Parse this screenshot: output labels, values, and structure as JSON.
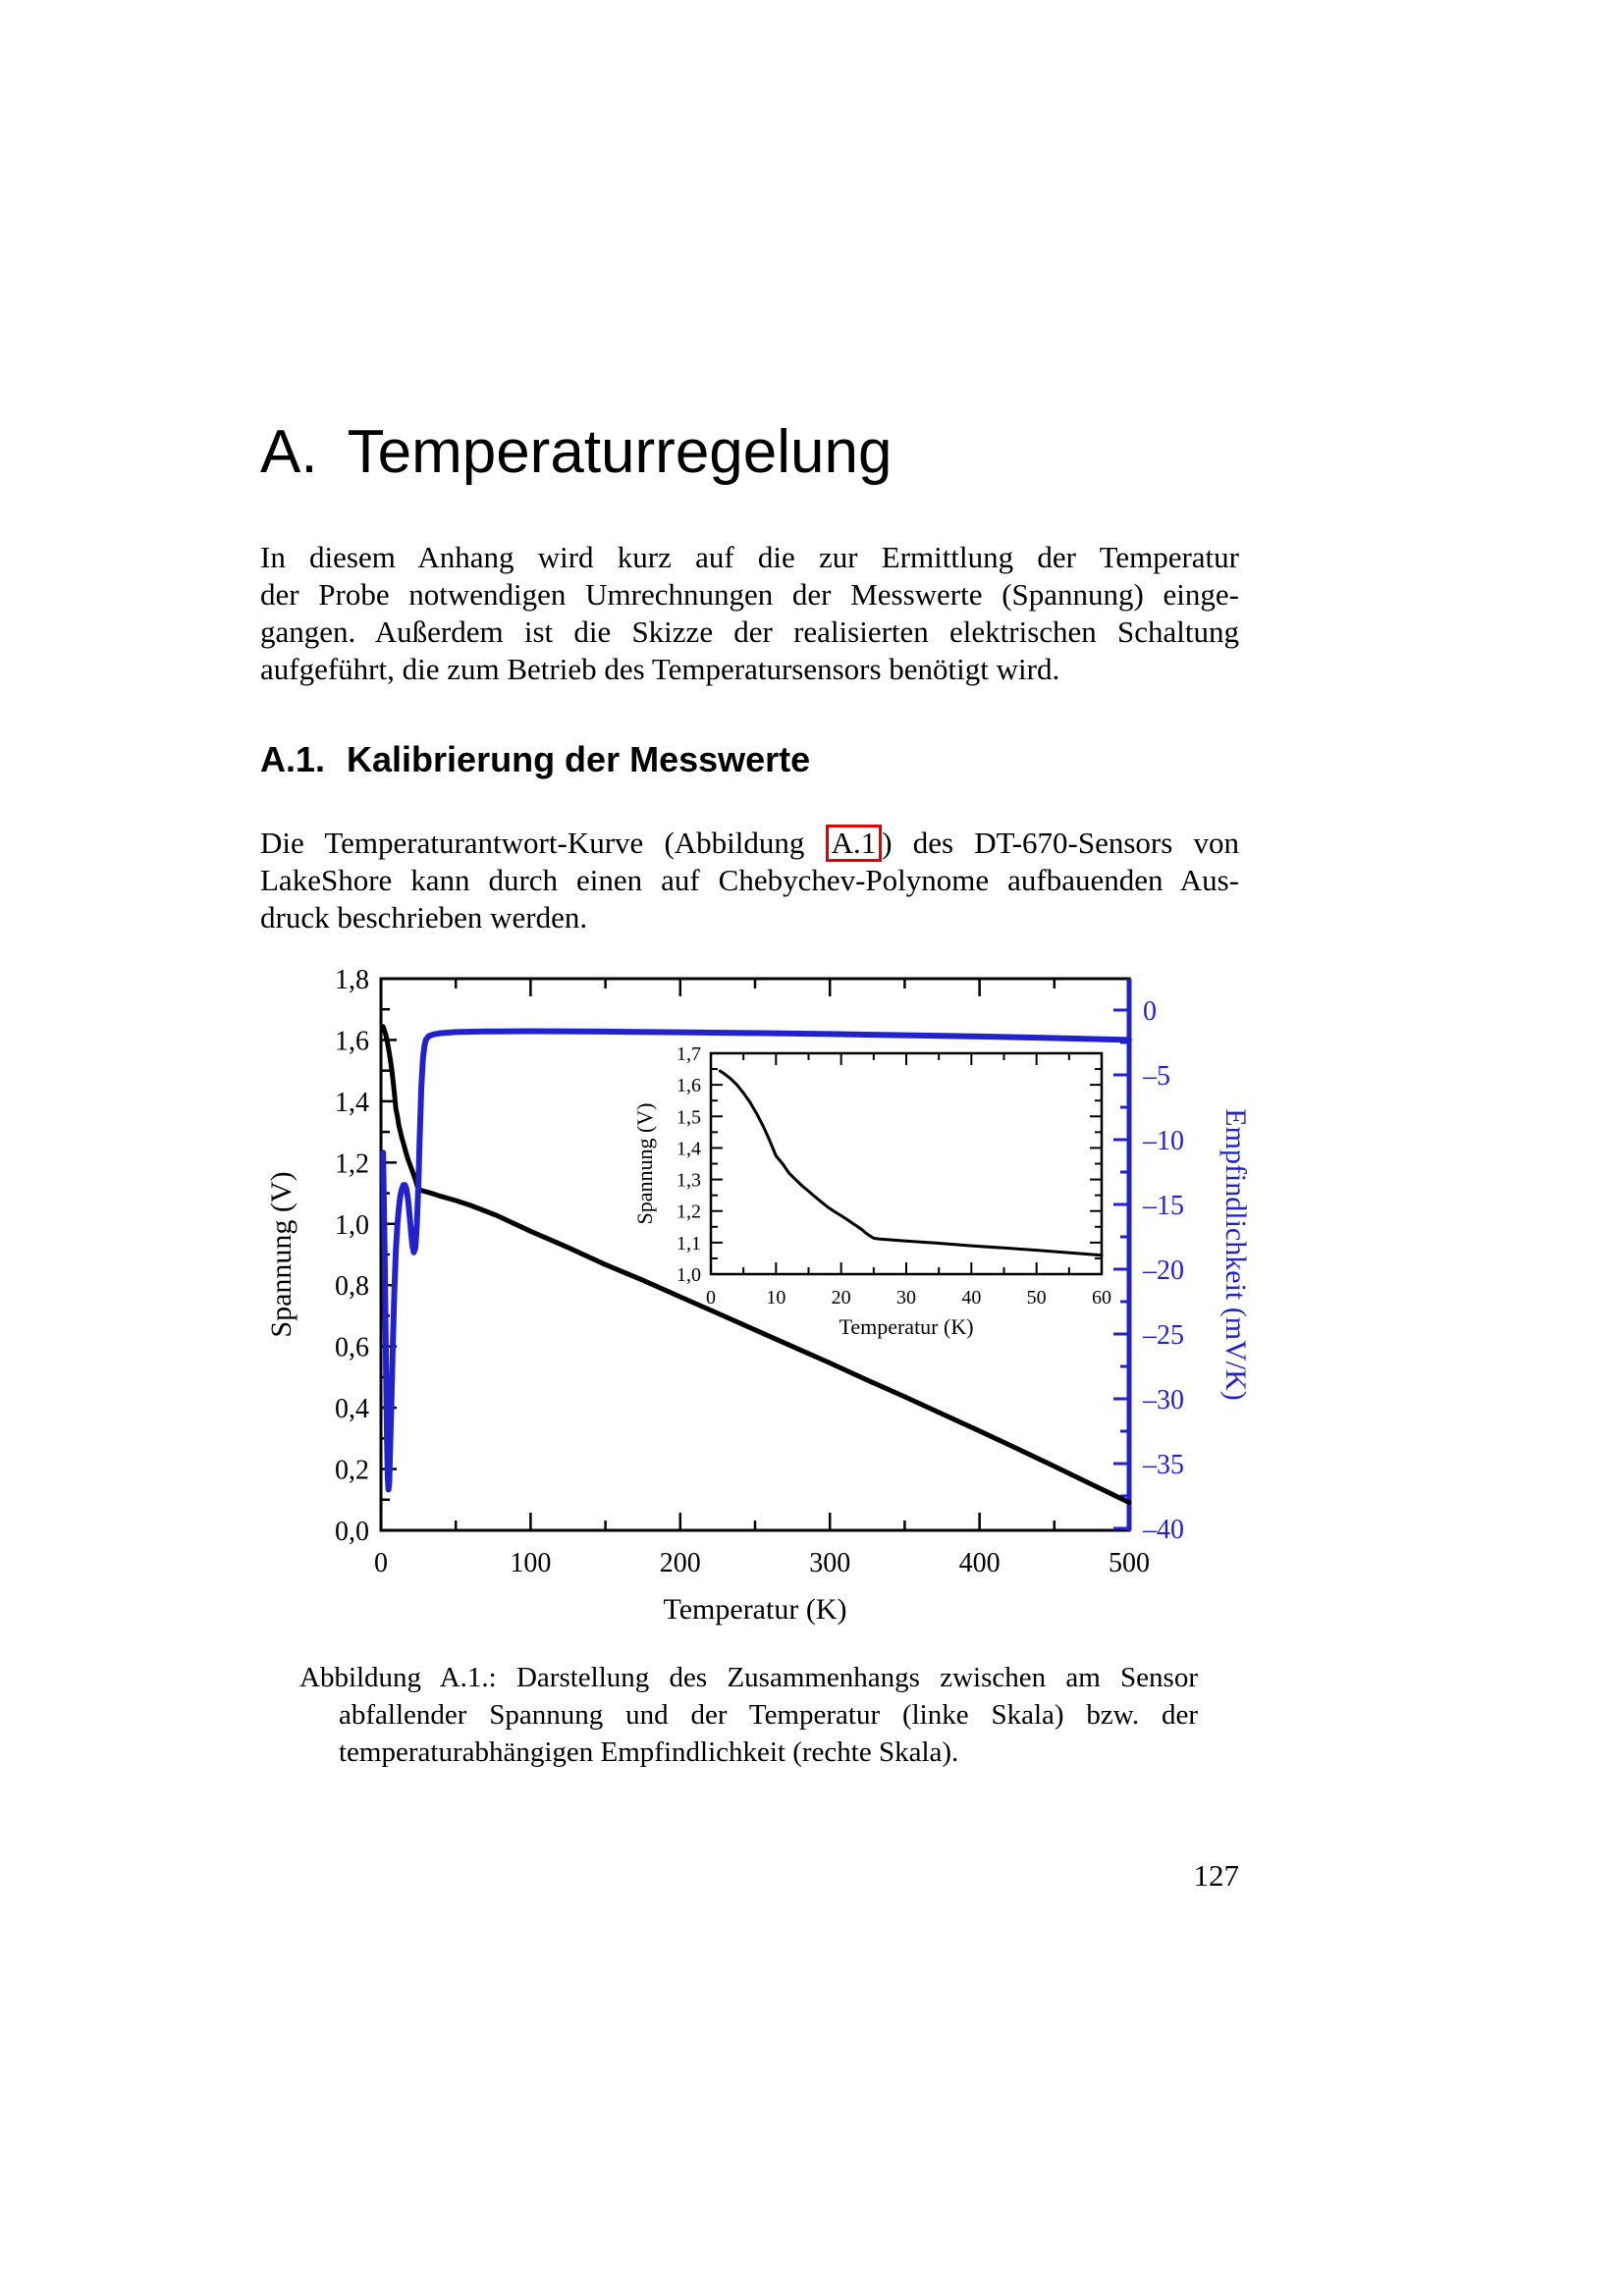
{
  "page": {
    "number": "127"
  },
  "chapter": {
    "label": "A.",
    "title": "Temperaturregelung"
  },
  "intro": {
    "lines": [
      "In diesem Anhang wird kurz auf die zur Ermittlung der Temperatur",
      "der Probe notwendigen Umrechnungen der Messwerte (Spannung) einge-",
      "gangen. Außerdem ist die Skizze der realisierten elektrischen Schaltung",
      "aufgeführt, die zum Betrieb des Temperatursensors benötigt wird."
    ]
  },
  "section": {
    "label": "A.1.",
    "title": "Kalibrierung der Messwerte"
  },
  "body": {
    "line1_before": "Die Temperaturantwort-Kurve (Abbildung",
    "line1_ref": "A.1",
    "line1_after": ") des DT-670-Sensors von",
    "line2": "LakeShore kann durch einen auf Chebychev-Polynome aufbauenden Aus-",
    "line3": "druck beschrieben werden."
  },
  "caption": {
    "lines": [
      "Abbildung A.1.: Darstellung des Zusammenhangs zwischen am Sensor",
      "abfallender Spannung und der Temperatur (linke Skala) bzw. der",
      "temperaturabhängigen Empfindlichkeit (rechte Skala)."
    ]
  },
  "colors": {
    "accent_blue": "#2222cc",
    "ref_red": "#e00000",
    "curve_black": "#000000"
  },
  "chart_data": {
    "type": "line",
    "main": {
      "x_axis": {
        "label": "Temperatur (K)",
        "min": 0,
        "max": 500,
        "major": 100,
        "minor": 50,
        "tick_labels": [
          "0",
          "100",
          "200",
          "300",
          "400",
          "500"
        ]
      },
      "left_axis": {
        "label": "Spannung (V)",
        "min": 0,
        "max": 1.8,
        "major": 0.2,
        "minor": 0.1,
        "tick_labels": [
          "0,0",
          "0,2",
          "0,4",
          "0,6",
          "0,8",
          "1,0",
          "1,2",
          "1,4",
          "1,6",
          "1,8"
        ]
      },
      "right_axis": {
        "label": "Empfindlichkeit (mV/K)",
        "min": -40,
        "max": 0,
        "major": 5,
        "minor": 2.5,
        "color": "#2222cc",
        "tick_labels": [
          "0",
          "–5",
          "–10",
          "–15",
          "–20",
          "–25",
          "–30",
          "–35",
          "–40"
        ]
      },
      "series": [
        {
          "name": "Spannung",
          "axis": "left",
          "color": "#000000",
          "width": 5,
          "points": [
            [
              1.4,
              1.644
            ],
            [
              2,
              1.636
            ],
            [
              3,
              1.62
            ],
            [
              4,
              1.6
            ],
            [
              5,
              1.574
            ],
            [
              6,
              1.545
            ],
            [
              7,
              1.51
            ],
            [
              8,
              1.47
            ],
            [
              9,
              1.425
            ],
            [
              10,
              1.375
            ],
            [
              11,
              1.35
            ],
            [
              12,
              1.32
            ],
            [
              13,
              1.3
            ],
            [
              14,
              1.28
            ],
            [
              15,
              1.263
            ],
            [
              16,
              1.245
            ],
            [
              17,
              1.228
            ],
            [
              18,
              1.212
            ],
            [
              19,
              1.198
            ],
            [
              20,
              1.185
            ],
            [
              21,
              1.172
            ],
            [
              22,
              1.158
            ],
            [
              23,
              1.144
            ],
            [
              24,
              1.127
            ],
            [
              25,
              1.114
            ],
            [
              26,
              1.111
            ],
            [
              28,
              1.108
            ],
            [
              30,
              1.105
            ],
            [
              35,
              1.098
            ],
            [
              40,
              1.09
            ],
            [
              45,
              1.083
            ],
            [
              50,
              1.076
            ],
            [
              60,
              1.06
            ],
            [
              77,
              1.028
            ],
            [
              100,
              0.976
            ],
            [
              125,
              0.923
            ],
            [
              150,
              0.867
            ],
            [
              175,
              0.816
            ],
            [
              200,
              0.762
            ],
            [
              225,
              0.708
            ],
            [
              250,
              0.654
            ],
            [
              275,
              0.6
            ],
            [
              300,
              0.546
            ],
            [
              325,
              0.49
            ],
            [
              350,
              0.436
            ],
            [
              375,
              0.38
            ],
            [
              400,
              0.324
            ],
            [
              425,
              0.267
            ],
            [
              450,
              0.209
            ],
            [
              475,
              0.15
            ],
            [
              500,
              0.091
            ]
          ]
        },
        {
          "name": "Empfindlichkeit",
          "axis": "right",
          "color": "#2222cc",
          "width": 6,
          "points": [
            [
              1.4,
              -11
            ],
            [
              2,
              -15
            ],
            [
              2.5,
              -19
            ],
            [
              3,
              -24
            ],
            [
              3.5,
              -28.5
            ],
            [
              4,
              -33
            ],
            [
              4.5,
              -36
            ],
            [
              5,
              -37
            ],
            [
              5.5,
              -36.5
            ],
            [
              6,
              -34.5
            ],
            [
              7,
              -30
            ],
            [
              8,
              -25.5
            ],
            [
              9,
              -21.5
            ],
            [
              10,
              -18.5
            ],
            [
              11,
              -16.5
            ],
            [
              12,
              -15.2
            ],
            [
              13,
              -14.3
            ],
            [
              14,
              -13.8
            ],
            [
              15,
              -13.5
            ],
            [
              16,
              -13.5
            ],
            [
              17,
              -13.8
            ],
            [
              18,
              -14.5
            ],
            [
              19,
              -15.7
            ],
            [
              20,
              -17
            ],
            [
              21,
              -18.2
            ],
            [
              22,
              -18.7
            ],
            [
              23,
              -18.3
            ],
            [
              24,
              -16.5
            ],
            [
              25,
              -13.5
            ],
            [
              26,
              -9.5
            ],
            [
              27,
              -6
            ],
            [
              28,
              -3.8
            ],
            [
              29,
              -2.8
            ],
            [
              30,
              -2.3
            ],
            [
              32,
              -2.0
            ],
            [
              35,
              -1.88
            ],
            [
              40,
              -1.78
            ],
            [
              50,
              -1.7
            ],
            [
              70,
              -1.65
            ],
            [
              100,
              -1.63
            ],
            [
              150,
              -1.66
            ],
            [
              200,
              -1.71
            ],
            [
              250,
              -1.77
            ],
            [
              300,
              -1.85
            ],
            [
              350,
              -1.94
            ],
            [
              400,
              -2.04
            ],
            [
              450,
              -2.16
            ],
            [
              500,
              -2.3
            ]
          ]
        }
      ]
    },
    "inset": {
      "x_axis": {
        "label": "Temperatur (K)",
        "min": 0,
        "max": 60,
        "major": 10,
        "minor": 5,
        "tick_labels": [
          "0",
          "10",
          "20",
          "30",
          "40",
          "50",
          "60"
        ]
      },
      "y_axis": {
        "label": "Spannung (V)",
        "min": 1.0,
        "max": 1.7,
        "major": 0.1,
        "minor": 0.05,
        "tick_labels": [
          "1,0",
          "1,1",
          "1,2",
          "1,3",
          "1,4",
          "1,5",
          "1,6",
          "1,7"
        ]
      },
      "series": {
        "name": "Spannung",
        "color": "#000000",
        "width": 3,
        "t_max": 60
      }
    }
  }
}
